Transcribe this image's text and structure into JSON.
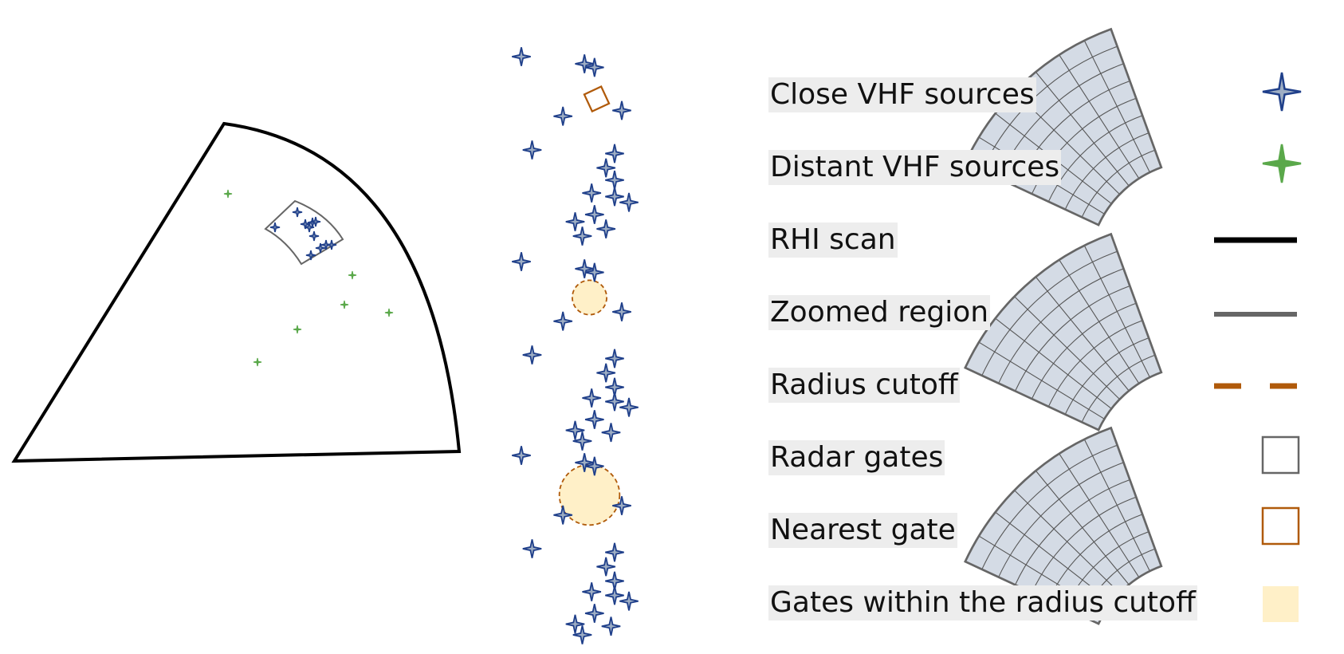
{
  "colors": {
    "rhi_outline": "#000000",
    "zoom_outline": "#666666",
    "close_vhf_fill": "#9eaec4",
    "close_vhf_stroke": "#1f3f8a",
    "distant_vhf": "#5aa84a",
    "grid_fill": "#d4dbe5",
    "grid_line": "#555555",
    "nearest_gate": "#b05a0a",
    "radius_cutoff": "#b05a0a",
    "cutoff_fill": "#fff0c8",
    "label_bg": "#ededed"
  },
  "legend": {
    "items": [
      {
        "id": "close-vhf",
        "label": "Close VHF sources",
        "symbol": "star-close-icon"
      },
      {
        "id": "distant-vhf",
        "label": "Distant VHF sources",
        "symbol": "star-distant-icon"
      },
      {
        "id": "rhi-scan",
        "label": "RHI scan",
        "symbol": "black-line-icon"
      },
      {
        "id": "zoomed-region",
        "label": "Zoomed region",
        "symbol": "gray-line-icon"
      },
      {
        "id": "radius-cutoff",
        "label": "Radius cutoff",
        "symbol": "dashed-line-icon"
      },
      {
        "id": "radar-gates",
        "label": "Radar gates",
        "symbol": "gray-square-icon"
      },
      {
        "id": "nearest-gate",
        "label": "Nearest gate",
        "symbol": "brown-square-icon"
      },
      {
        "id": "gates-within-cutoff",
        "label": "Gates within the radius cutoff",
        "symbol": "yellow-square-icon"
      }
    ]
  }
}
